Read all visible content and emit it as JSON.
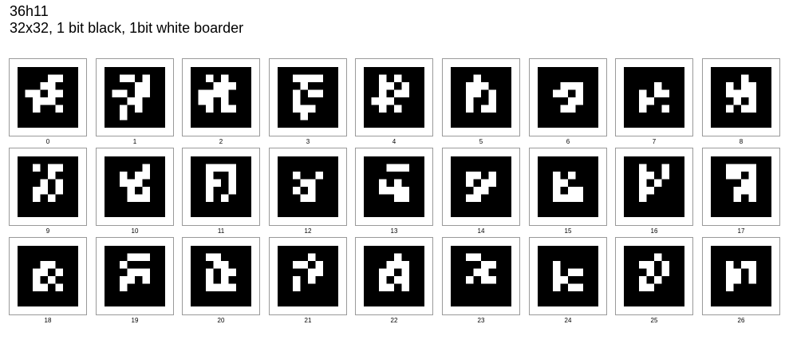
{
  "header": {
    "title": "36h11",
    "subtitle": "32x32, 1 bit black, 1bit white boarder"
  },
  "colors": {
    "black": "#000000",
    "white": "#ffffff",
    "frame": "#9a9a9a"
  },
  "tags": [
    {
      "id": "0",
      "grid": [
        "111001",
        "110011",
        "001001",
        "100011",
        "101101",
        "111111"
      ]
    },
    {
      "id": "1",
      "grid": [
        "100101",
        "111001",
        "001001",
        "110011",
        "101011",
        "101111"
      ]
    },
    {
      "id": "2",
      "grid": [
        "101011",
        "110001",
        "000011",
        "001011",
        "101001",
        "111111"
      ]
    },
    {
      "id": "3",
      "grid": [
        "100001",
        "110111",
        "101001",
        "101111",
        "100011",
        "110111"
      ]
    },
    {
      "id": "4",
      "grid": [
        "101011",
        "100101",
        "101001",
        "000111",
        "101011",
        "111111"
      ]
    },
    {
      "id": "5",
      "grid": [
        "110111",
        "100011",
        "100101",
        "101101",
        "101001",
        "111111"
      ]
    },
    {
      "id": "6",
      "grid": [
        "111111",
        "110001",
        "100101",
        "111001",
        "110011",
        "111111"
      ]
    },
    {
      "id": "7",
      "grid": [
        "111111",
        "111011",
        "101001",
        "100111",
        "101101",
        "111111"
      ]
    },
    {
      "id": "8",
      "grid": [
        "111011",
        "101001",
        "100001",
        "110101",
        "101001",
        "111111"
      ]
    },
    {
      "id": "9",
      "grid": [
        "101001",
        "111011",
        "110101",
        "100101",
        "101011",
        "111111"
      ]
    },
    {
      "id": "10",
      "grid": [
        "111101",
        "101001",
        "100011",
        "110101",
        "110001",
        "111111"
      ]
    },
    {
      "id": "11",
      "grid": [
        "100001",
        "101101",
        "100101",
        "101101",
        "101011",
        "111111"
      ]
    },
    {
      "id": "12",
      "grid": [
        "111111",
        "101101",
        "110011",
        "101011",
        "110011",
        "111111"
      ]
    },
    {
      "id": "13",
      "grid": [
        "110001",
        "111111",
        "101011",
        "100001",
        "111001",
        "111111"
      ]
    },
    {
      "id": "14",
      "grid": [
        "111111",
        "100101",
        "101001",
        "110011",
        "100111",
        "111111"
      ]
    },
    {
      "id": "15",
      "grid": [
        "111111",
        "101011",
        "100111",
        "101001",
        "100001",
        "111111"
      ]
    },
    {
      "id": "16",
      "grid": [
        "101101",
        "100101",
        "101011",
        "100111",
        "101111",
        "111111"
      ]
    },
    {
      "id": "17",
      "grid": [
        "100001",
        "100101",
        "111001",
        "110001",
        "110101",
        "111111"
      ]
    },
    {
      "id": "18",
      "grid": [
        "111111",
        "110011",
        "100101",
        "101011",
        "100101",
        "111111"
      ]
    },
    {
      "id": "19",
      "grid": [
        "110001",
        "101111",
        "110001",
        "100101",
        "101111",
        "111111"
      ]
    },
    {
      "id": "20",
      "grid": [
        "100111",
        "110011",
        "101001",
        "101011",
        "100001",
        "111111"
      ]
    },
    {
      "id": "21",
      "grid": [
        "111011",
        "100101",
        "111001",
        "101011",
        "101111",
        "111111"
      ]
    },
    {
      "id": "22",
      "grid": [
        "111011",
        "110001",
        "100101",
        "101001",
        "100101",
        "111111"
      ]
    },
    {
      "id": "23",
      "grid": [
        "100111",
        "111001",
        "110011",
        "101001",
        "111111",
        "111111"
      ]
    },
    {
      "id": "24",
      "grid": [
        "111111",
        "101111",
        "101001",
        "100111",
        "101001",
        "111111"
      ]
    },
    {
      "id": "25",
      "grid": [
        "111011",
        "100101",
        "110101",
        "101011",
        "100111",
        "111111"
      ]
    },
    {
      "id": "26",
      "grid": [
        "111111",
        "101001",
        "100101",
        "100101",
        "101111",
        "111111"
      ]
    }
  ]
}
